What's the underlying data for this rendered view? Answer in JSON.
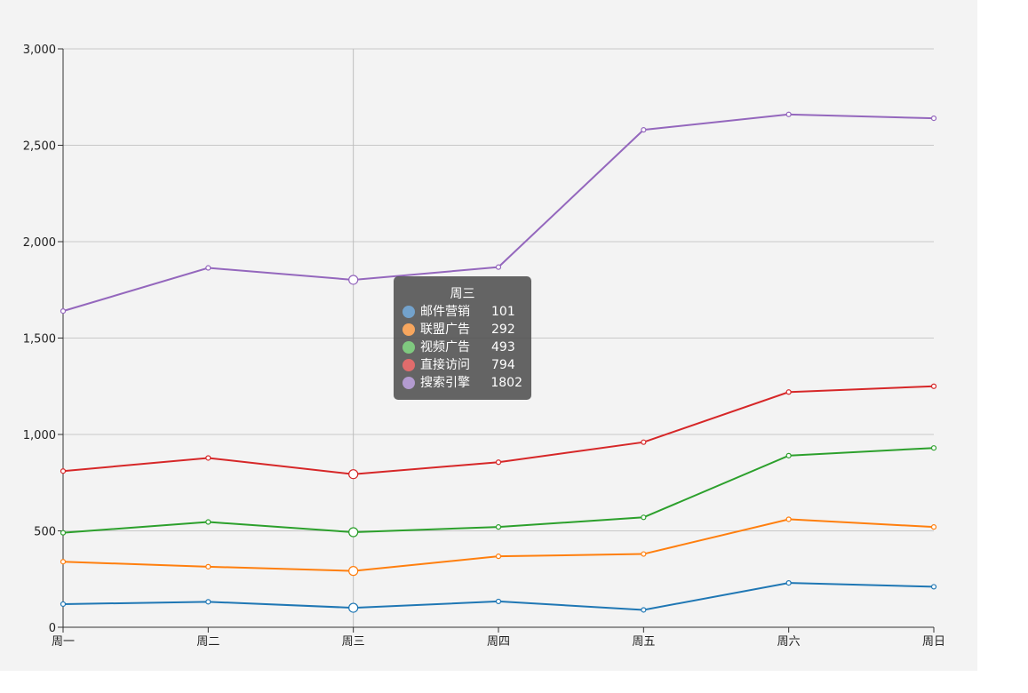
{
  "chart_data": {
    "type": "line",
    "categories": [
      "周一",
      "周二",
      "周三",
      "周四",
      "周五",
      "周六",
      "周日"
    ],
    "ylim": [
      0,
      3000
    ],
    "yticks": [
      0,
      500,
      1000,
      1500,
      2000,
      2500,
      3000
    ],
    "ytick_labels": [
      "0",
      "500",
      "1,000",
      "1,500",
      "2,000",
      "2,500",
      "3,000"
    ],
    "grid": true,
    "series": [
      {
        "name": "邮件营销",
        "color": "#1f77b4",
        "values": [
          120,
          132,
          101,
          134,
          90,
          230,
          210
        ]
      },
      {
        "name": "联盟广告",
        "color": "#ff7f0e",
        "values": [
          340,
          314,
          292,
          368,
          380,
          560,
          520
        ]
      },
      {
        "name": "视频广告",
        "color": "#2ca02c",
        "values": [
          490,
          546,
          493,
          520,
          570,
          890,
          930
        ]
      },
      {
        "name": "直接访问",
        "color": "#d62728",
        "values": [
          810,
          878,
          794,
          856,
          960,
          1220,
          1250
        ]
      },
      {
        "name": "搜索引擎",
        "color": "#9467bd",
        "values": [
          1640,
          1864,
          1802,
          1868,
          2580,
          2660,
          2640
        ]
      }
    ],
    "highlight_index": 2
  },
  "tooltip": {
    "title": "周三",
    "rows": [
      {
        "name": "邮件营销",
        "value": "101",
        "dot_color": "#73a2cc"
      },
      {
        "name": "联盟广告",
        "value": "292",
        "dot_color": "#f7a65e"
      },
      {
        "name": "视频广告",
        "value": "493",
        "dot_color": "#7fc97f"
      },
      {
        "name": "直接访问",
        "value": "794",
        "dot_color": "#e06c6c"
      },
      {
        "name": "搜索引擎",
        "value": "1802",
        "dot_color": "#b39bd0"
      }
    ]
  }
}
